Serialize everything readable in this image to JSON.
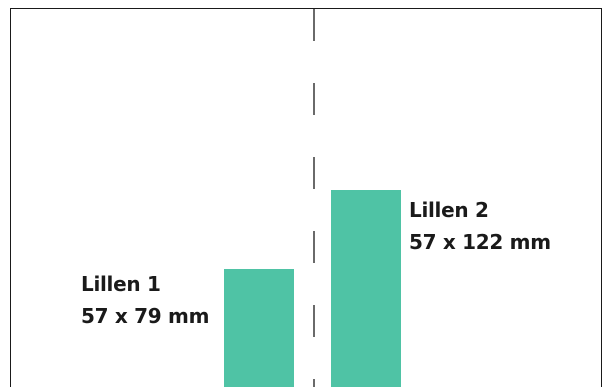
{
  "tabs": [
    {
      "name": "Lillen 1",
      "size": "57 x 79 mm",
      "width_mm": 57,
      "height_mm": 79
    },
    {
      "name": "Lillen 2",
      "size": "57 x 122 mm",
      "width_mm": 57,
      "height_mm": 122
    }
  ],
  "colors": {
    "tab": "#4fc3a5",
    "line": "#1a1a1a",
    "background": "#ffffff"
  }
}
